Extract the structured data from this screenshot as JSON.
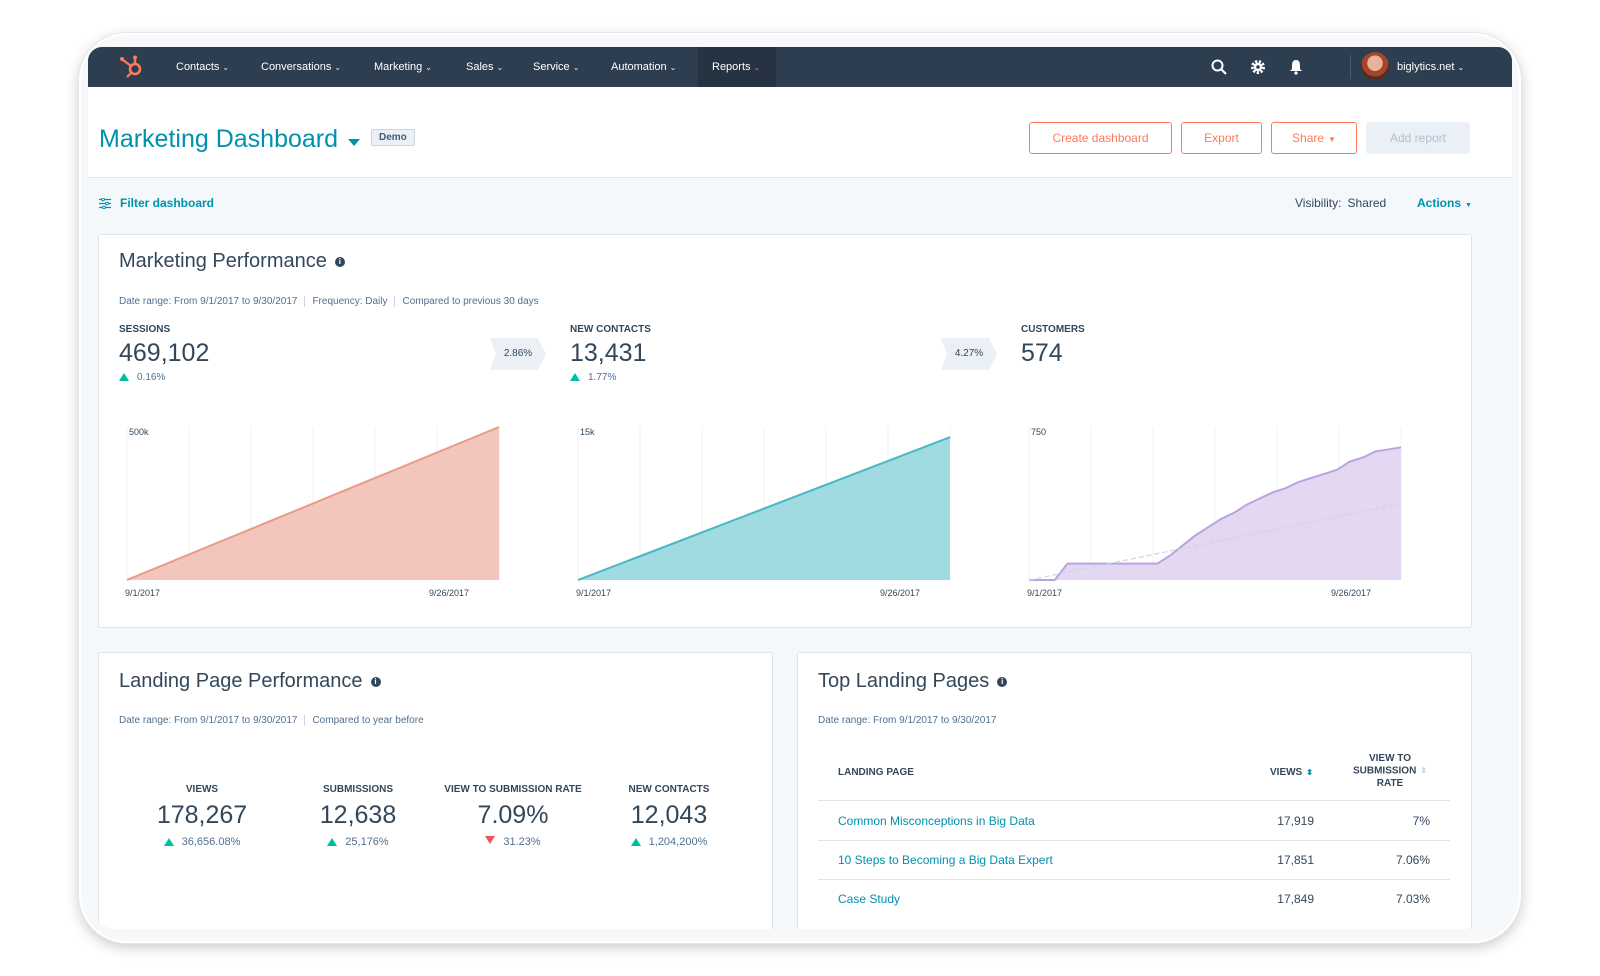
{
  "nav": {
    "items": [
      {
        "label": "Contacts"
      },
      {
        "label": "Conversations"
      },
      {
        "label": "Marketing"
      },
      {
        "label": "Sales"
      },
      {
        "label": "Service"
      },
      {
        "label": "Automation"
      },
      {
        "label": "Reports"
      }
    ],
    "account": "biglytics.net"
  },
  "header": {
    "title": "Marketing Dashboard",
    "badge": "Demo",
    "buttons": {
      "create": "Create dashboard",
      "export": "Export",
      "share": "Share",
      "add_report": "Add report"
    }
  },
  "filter_bar": {
    "filter_label": "Filter dashboard",
    "visibility_label": "Visibility:",
    "visibility_value": "Shared",
    "actions_label": "Actions"
  },
  "marketing_performance": {
    "title": "Marketing Performance",
    "meta": {
      "date_range": "Date range: From 9/1/2017 to 9/30/2017",
      "frequency": "Frequency: Daily",
      "compared": "Compared to previous 30 days"
    },
    "metrics": [
      {
        "label": "SESSIONS",
        "value": "469,102",
        "change": "0.16%"
      },
      {
        "label": "NEW CONTACTS",
        "value": "13,431",
        "change": "1.77%"
      },
      {
        "label": "CUSTOMERS",
        "value": "574",
        "change": ""
      }
    ],
    "conversions": [
      "2.86%",
      "4.27%"
    ]
  },
  "chart_data": [
    {
      "type": "area",
      "series": [
        {
          "values": [
            0,
            500000
          ]
        }
      ],
      "x": [
        "9/1/2017",
        "9/26/2017"
      ],
      "x_tick_labels": [
        "9/1/2017",
        "9/26/2017"
      ],
      "y_tick_labels": [
        "500k"
      ],
      "ylim": [
        0,
        500000
      ],
      "color": "#f2c6bd",
      "line_color": "#ea9a88"
    },
    {
      "type": "area",
      "series": [
        {
          "values": [
            0,
            14000
          ]
        }
      ],
      "x": [
        "9/1/2017",
        "9/26/2017"
      ],
      "x_tick_labels": [
        "9/1/2017",
        "9/26/2017"
      ],
      "y_tick_labels": [
        "15k"
      ],
      "ylim": [
        0,
        15000
      ],
      "color": "#9fdbe0",
      "line_color": "#45b8c4"
    },
    {
      "type": "area",
      "series": [
        {
          "values": [
            0,
            0,
            0,
            80,
            80,
            80,
            80,
            80,
            80,
            80,
            80,
            120,
            170,
            220,
            260,
            300,
            330,
            370,
            400,
            430,
            450,
            480,
            500,
            520,
            540,
            580,
            600,
            630,
            640,
            650
          ]
        },
        {
          "values": [
            0,
            9,
            18,
            28,
            37,
            47,
            56,
            65,
            75,
            84,
            94,
            103,
            112,
            122,
            131,
            141,
            150,
            159,
            169,
            178,
            188,
            197,
            206,
            216,
            225,
            235,
            244,
            253,
            263,
            272,
            282,
            291,
            300,
            310,
            319,
            329,
            338,
            347,
            357,
            366,
            376
          ]
        }
      ],
      "x_tick_labels": [
        "9/1/2017",
        "9/26/2017"
      ],
      "y_tick_labels": [
        "750"
      ],
      "ylim": [
        0,
        750
      ],
      "color": "#e3d7f1",
      "line_color": "#b9a3e0"
    }
  ],
  "landing_page_performance": {
    "title": "Landing Page Performance",
    "meta": {
      "date_range": "Date range: From 9/1/2017 to 9/30/2017",
      "compared": "Compared to year before"
    },
    "metrics": [
      {
        "label": "VIEWS",
        "value": "178,267",
        "change": "36,656.08%",
        "direction": "up"
      },
      {
        "label": "SUBMISSIONS",
        "value": "12,638",
        "change": "25,176%",
        "direction": "up"
      },
      {
        "label": "VIEW TO SUBMISSION RATE",
        "value": "7.09%",
        "change": "31.23%",
        "direction": "down"
      },
      {
        "label": "NEW CONTACTS",
        "value": "12,043",
        "change": "1,204,200%",
        "direction": "up"
      }
    ]
  },
  "top_landing_pages": {
    "title": "Top Landing Pages",
    "meta": {
      "date_range": "Date range: From 9/1/2017 to 9/30/2017"
    },
    "columns": [
      "LANDING PAGE",
      "VIEWS",
      "VIEW TO",
      "SUBMISSION",
      "RATE"
    ],
    "rows": [
      {
        "page": "Common Misconceptions in Big Data",
        "views": "17,919",
        "rate": "7%"
      },
      {
        "page": "10 Steps to Becoming a Big Data Expert",
        "views": "17,851",
        "rate": "7.06%"
      },
      {
        "page": "Case Study",
        "views": "17,849",
        "rate": "7.03%"
      }
    ]
  }
}
